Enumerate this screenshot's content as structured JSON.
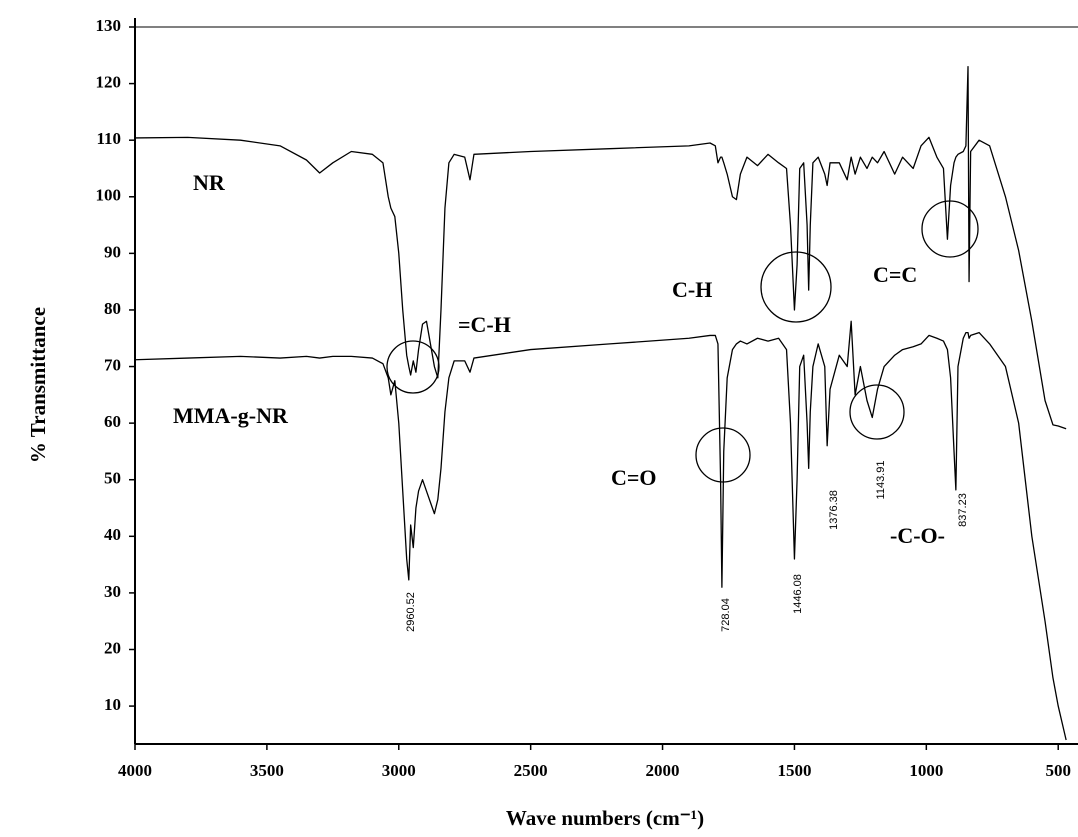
{
  "chart_data": {
    "type": "line",
    "xlabel": "Wave numbers (cm⁻¹)",
    "ylabel": "% Transmittance",
    "xlim": [
      4000,
      425
    ],
    "ylim": [
      3.3,
      130
    ],
    "xticks": [
      4000,
      3500,
      3000,
      2500,
      2000,
      1500,
      1000,
      500
    ],
    "yticks": [
      10,
      20,
      30,
      40,
      50,
      60,
      70,
      80,
      90,
      100,
      110,
      120,
      130
    ],
    "annotations": [
      "=C-H",
      "C-H",
      "C=C",
      "C=O",
      "-C-O-"
    ],
    "peak_labels": [
      "2960.52",
      "728.04",
      "1446.08",
      "1376.38",
      "1143.91",
      "837.23"
    ],
    "x": [
      4000,
      3800,
      3600,
      3450,
      3350,
      3300,
      3250,
      3180,
      3100,
      3060,
      3040,
      3030,
      3015,
      3000,
      2985,
      2970,
      2962,
      2955,
      2945,
      2935,
      2925,
      2910,
      2895,
      2880,
      2865,
      2852,
      2840,
      2825,
      2810,
      2790,
      2750,
      2730,
      2715,
      2500,
      2200,
      1900,
      1820,
      1800,
      1790,
      1780,
      1775,
      1768,
      1755,
      1735,
      1720,
      1705,
      1680,
      1640,
      1600,
      1560,
      1530,
      1515,
      1500,
      1490,
      1480,
      1465,
      1452,
      1446,
      1440,
      1430,
      1410,
      1385,
      1376,
      1365,
      1330,
      1300,
      1285,
      1270,
      1250,
      1225,
      1205,
      1185,
      1160,
      1120,
      1090,
      1050,
      1020,
      990,
      960,
      935,
      920,
      908,
      895,
      888,
      880,
      860,
      850,
      842,
      838,
      832,
      800,
      760,
      700,
      650,
      600,
      550,
      520,
      500,
      470
    ],
    "series": [
      {
        "name": "NR",
        "color": "#000000",
        "values": [
          110.4,
          110.5,
          110,
          109,
          106.5,
          104.2,
          106,
          108,
          107.5,
          106,
          100,
          98,
          96.5,
          90,
          80,
          72,
          70,
          68.5,
          71,
          69,
          73,
          77.5,
          78,
          74,
          70,
          68,
          80,
          98,
          106,
          107.5,
          107,
          103,
          107.5,
          108,
          108.5,
          109,
          109.5,
          109,
          106,
          107,
          107,
          106,
          104,
          100,
          99.5,
          104,
          107,
          105.5,
          107.5,
          106,
          105,
          95,
          80,
          88,
          105,
          106,
          95,
          83.5,
          95,
          106,
          107,
          104,
          102,
          106,
          106,
          103,
          107,
          104,
          107,
          105,
          107,
          106,
          108,
          104,
          107,
          105,
          109,
          110.5,
          107,
          105,
          92.5,
          102,
          106,
          107,
          107.5,
          108,
          109,
          123,
          85,
          108,
          110,
          109,
          100,
          90.5,
          78,
          64,
          59.7,
          59.5,
          59
        ]
      },
      {
        "name": "MMA-g-NR",
        "color": "#000000",
        "values": [
          71.2,
          71.5,
          71.8,
          71.5,
          71.8,
          71.5,
          71.8,
          71.8,
          71.5,
          70.5,
          68,
          65,
          67.5,
          60,
          48,
          36,
          32.3,
          42,
          38,
          45,
          48,
          50,
          48,
          46,
          44,
          46.5,
          52,
          62,
          68,
          71,
          71,
          69,
          71.5,
          73,
          74,
          75,
          75.5,
          75.5,
          74,
          50,
          31,
          55,
          68,
          73,
          74,
          74.5,
          74,
          75,
          74.5,
          75,
          73,
          60,
          36,
          50,
          70,
          72,
          60,
          52,
          62,
          70,
          74,
          70,
          56,
          66,
          72,
          70,
          78,
          65,
          70,
          64,
          61,
          66,
          70,
          72,
          73,
          73.5,
          74,
          75.5,
          75,
          74.5,
          73,
          68,
          55,
          48.2,
          70,
          75,
          76,
          76,
          75,
          75.5,
          76,
          74,
          70,
          60,
          40,
          25,
          15,
          10,
          4
        ]
      }
    ]
  }
}
